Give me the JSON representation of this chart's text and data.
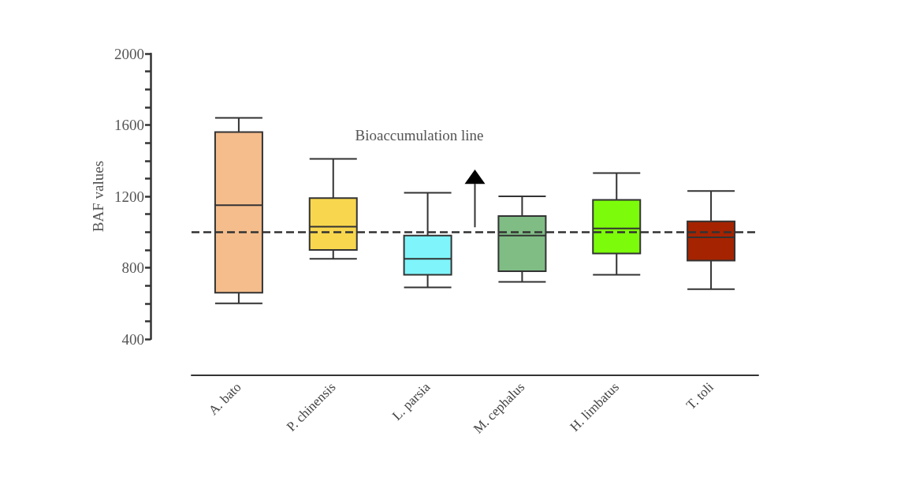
{
  "chart_data": {
    "type": "box",
    "ylabel": "BAF values",
    "categories": [
      "A. bato",
      "P. chinensis",
      "L. parsia",
      "M. cephalus",
      "H. limbatus",
      "T. toli"
    ],
    "boxes": [
      {
        "low": 600,
        "q1": 660,
        "median": 1150,
        "q3": 1560,
        "high": 1640
      },
      {
        "low": 850,
        "q1": 900,
        "median": 1030,
        "q3": 1190,
        "high": 1410
      },
      {
        "low": 690,
        "q1": 760,
        "median": 850,
        "q3": 980,
        "high": 1220
      },
      {
        "low": 720,
        "q1": 780,
        "median": 980,
        "q3": 1090,
        "high": 1200
      },
      {
        "low": 760,
        "q1": 880,
        "median": 1020,
        "q3": 1180,
        "high": 1330
      },
      {
        "low": 680,
        "q1": 840,
        "median": 970,
        "q3": 1060,
        "high": 1230
      }
    ],
    "colors": [
      "#f5bd8c",
      "#f8d74e",
      "#7ff5fb",
      "#7fbd85",
      "#7cfc0a",
      "#a52300"
    ],
    "ylim": [
      400,
      2000
    ],
    "yticks": [
      400,
      800,
      1200,
      1600,
      2000
    ],
    "ref_lines": [
      {
        "axis": "y",
        "value": 1000,
        "label": "Bioaccumulation line",
        "line_style": "dashed"
      }
    ],
    "grid": false
  }
}
